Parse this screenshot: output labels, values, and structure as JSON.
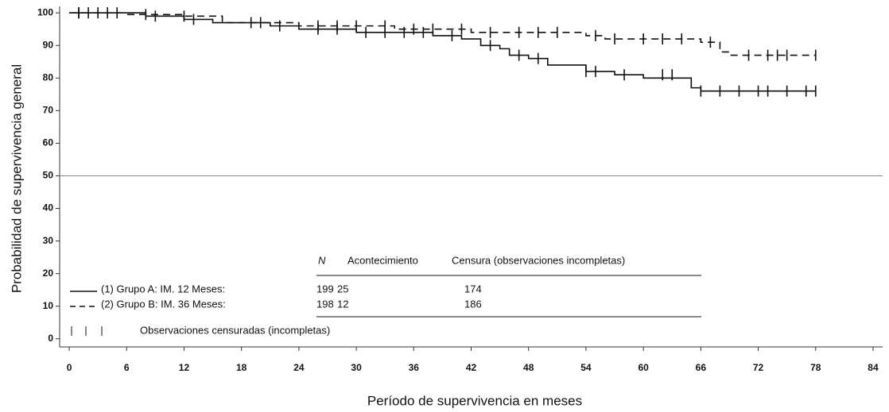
{
  "chart_data": {
    "type": "km",
    "x_label": "Período de supervivencia en meses",
    "y_label": "Probabilidad de supervivencia general",
    "xlim": [
      -1,
      85
    ],
    "xticks": [
      0,
      6,
      12,
      18,
      24,
      30,
      36,
      42,
      48,
      54,
      60,
      66,
      72,
      78,
      84
    ],
    "ylim": [
      -2.5,
      102
    ],
    "yticks": [
      0,
      10,
      20,
      30,
      40,
      50,
      60,
      70,
      80,
      90,
      100
    ],
    "reference_line": 50,
    "series": [
      {
        "name": "(1) Grupo A:  IM. 12 Meses:",
        "color": "#111111",
        "dashed": false,
        "x": [
          0,
          8,
          12,
          15,
          21,
          24,
          30,
          38,
          41,
          43,
          45,
          46,
          48,
          50,
          54,
          57,
          60,
          65,
          66,
          78
        ],
        "values": [
          100,
          99,
          98,
          97,
          96,
          95,
          94,
          93,
          92,
          90,
          89,
          87,
          86,
          84,
          82,
          81,
          80,
          77,
          76,
          76
        ],
        "censored_x": [
          1,
          3,
          5,
          9,
          13,
          19,
          22,
          26,
          28,
          31,
          33,
          35,
          37,
          40,
          44,
          47,
          49,
          54,
          55,
          58,
          62,
          63,
          66,
          68,
          70,
          72,
          73,
          75,
          77,
          78
        ],
        "censored_y": [
          100,
          100,
          100,
          99,
          98,
          97,
          96,
          95,
          95,
          94,
          94,
          94,
          94,
          93,
          90,
          87,
          86,
          82,
          82,
          81,
          81,
          81,
          76,
          76,
          76,
          76,
          76,
          76,
          76,
          76
        ]
      },
      {
        "name": "(2) Grupo B:  IM. 36 Meses:",
        "color": "#111111",
        "dashed": true,
        "x": [
          0,
          6,
          12,
          16,
          24,
          34,
          42,
          54,
          56,
          66,
          68,
          69,
          78
        ],
        "values": [
          100,
          99.5,
          99,
          97,
          96,
          95,
          94,
          93,
          92,
          91,
          88,
          87,
          87
        ],
        "censored_x": [
          1,
          2,
          4,
          8,
          12,
          20,
          26,
          28,
          30,
          33,
          36,
          38,
          41,
          44,
          47,
          49,
          51,
          55,
          57,
          60,
          62,
          64,
          67,
          71,
          73,
          74,
          75,
          78
        ],
        "censored_y": [
          100,
          100,
          100,
          99.5,
          99,
          97,
          96,
          96,
          96,
          96,
          95,
          95,
          95,
          94,
          94,
          94,
          94,
          93,
          92,
          92,
          92,
          92,
          91,
          87,
          87,
          87,
          87,
          87
        ]
      }
    ],
    "legend_table": {
      "headers": [
        "N",
        "Acontecimiento",
        "Censura (observaciones incompletas)"
      ],
      "rows": [
        [
          199,
          25,
          174
        ],
        [
          198,
          12,
          186
        ]
      ]
    },
    "censored_label": "Observaciones censuradas (incompletas)"
  }
}
